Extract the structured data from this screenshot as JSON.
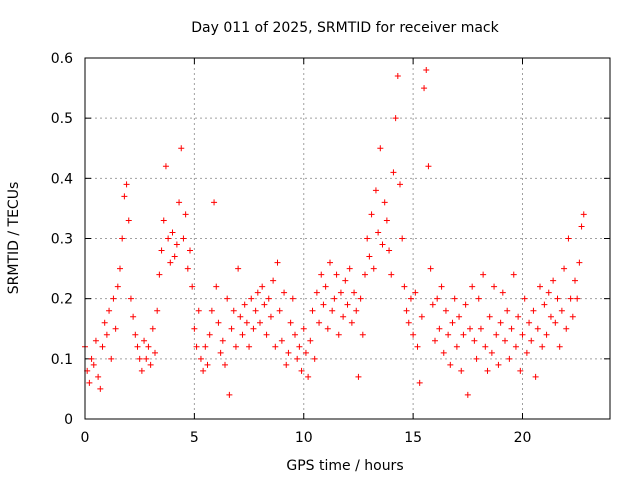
{
  "chart_data": {
    "type": "scatter",
    "title": "Day 011 of 2025, SRMTID for receiver mack",
    "xlabel": "GPS time / hours",
    "ylabel": "SRMTID / TECUs",
    "xlim": [
      0,
      24
    ],
    "ylim": [
      0,
      0.6
    ],
    "xticks": [
      0,
      5,
      10,
      15,
      20
    ],
    "xtick_labels": [
      "0",
      "5",
      "10",
      "15",
      "20"
    ],
    "yticks": [
      0,
      0.1,
      0.2,
      0.3,
      0.4,
      0.5,
      0.6
    ],
    "ytick_labels": [
      "0",
      "0.1",
      "0.2",
      "0.3",
      "0.4",
      "0.5",
      "0.6"
    ],
    "grid": true,
    "marker": "+",
    "series": [
      {
        "name": "SRMTID",
        "color": "#ff0000",
        "points": [
          [
            0.0,
            0.12
          ],
          [
            0.1,
            0.08
          ],
          [
            0.2,
            0.06
          ],
          [
            0.3,
            0.1
          ],
          [
            0.4,
            0.09
          ],
          [
            0.5,
            0.13
          ],
          [
            0.6,
            0.07
          ],
          [
            0.7,
            0.05
          ],
          [
            0.8,
            0.12
          ],
          [
            0.9,
            0.16
          ],
          [
            1.0,
            0.14
          ],
          [
            1.1,
            0.18
          ],
          [
            1.2,
            0.1
          ],
          [
            1.3,
            0.2
          ],
          [
            1.4,
            0.15
          ],
          [
            1.5,
            0.22
          ],
          [
            1.6,
            0.25
          ],
          [
            1.7,
            0.3
          ],
          [
            1.8,
            0.37
          ],
          [
            1.9,
            0.39
          ],
          [
            2.0,
            0.33
          ],
          [
            2.1,
            0.2
          ],
          [
            2.2,
            0.17
          ],
          [
            2.3,
            0.14
          ],
          [
            2.4,
            0.12
          ],
          [
            2.5,
            0.1
          ],
          [
            2.6,
            0.08
          ],
          [
            2.7,
            0.13
          ],
          [
            2.8,
            0.1
          ],
          [
            2.9,
            0.12
          ],
          [
            3.0,
            0.09
          ],
          [
            3.1,
            0.15
          ],
          [
            3.2,
            0.11
          ],
          [
            3.3,
            0.18
          ],
          [
            3.4,
            0.24
          ],
          [
            3.5,
            0.28
          ],
          [
            3.6,
            0.33
          ],
          [
            3.7,
            0.42
          ],
          [
            3.8,
            0.3
          ],
          [
            3.9,
            0.26
          ],
          [
            4.0,
            0.31
          ],
          [
            4.1,
            0.27
          ],
          [
            4.2,
            0.29
          ],
          [
            4.3,
            0.36
          ],
          [
            4.4,
            0.45
          ],
          [
            4.5,
            0.3
          ],
          [
            4.6,
            0.34
          ],
          [
            4.7,
            0.25
          ],
          [
            4.8,
            0.28
          ],
          [
            4.9,
            0.22
          ],
          [
            5.0,
            0.15
          ],
          [
            5.1,
            0.12
          ],
          [
            5.2,
            0.18
          ],
          [
            5.3,
            0.1
          ],
          [
            5.4,
            0.08
          ],
          [
            5.5,
            0.12
          ],
          [
            5.6,
            0.09
          ],
          [
            5.7,
            0.14
          ],
          [
            5.8,
            0.18
          ],
          [
            5.9,
            0.36
          ],
          [
            6.0,
            0.22
          ],
          [
            6.1,
            0.16
          ],
          [
            6.2,
            0.11
          ],
          [
            6.3,
            0.13
          ],
          [
            6.4,
            0.09
          ],
          [
            6.5,
            0.2
          ],
          [
            6.6,
            0.04
          ],
          [
            6.7,
            0.15
          ],
          [
            6.8,
            0.18
          ],
          [
            6.9,
            0.12
          ],
          [
            7.0,
            0.25
          ],
          [
            7.1,
            0.17
          ],
          [
            7.2,
            0.14
          ],
          [
            7.3,
            0.19
          ],
          [
            7.4,
            0.16
          ],
          [
            7.5,
            0.12
          ],
          [
            7.6,
            0.2
          ],
          [
            7.7,
            0.15
          ],
          [
            7.8,
            0.18
          ],
          [
            7.9,
            0.21
          ],
          [
            8.0,
            0.16
          ],
          [
            8.1,
            0.22
          ],
          [
            8.2,
            0.19
          ],
          [
            8.3,
            0.14
          ],
          [
            8.4,
            0.2
          ],
          [
            8.5,
            0.17
          ],
          [
            8.6,
            0.23
          ],
          [
            8.7,
            0.12
          ],
          [
            8.8,
            0.26
          ],
          [
            8.9,
            0.18
          ],
          [
            9.0,
            0.13
          ],
          [
            9.1,
            0.21
          ],
          [
            9.2,
            0.09
          ],
          [
            9.3,
            0.11
          ],
          [
            9.4,
            0.16
          ],
          [
            9.5,
            0.2
          ],
          [
            9.6,
            0.14
          ],
          [
            9.7,
            0.1
          ],
          [
            9.8,
            0.12
          ],
          [
            9.9,
            0.08
          ],
          [
            10.0,
            0.15
          ],
          [
            10.1,
            0.11
          ],
          [
            10.2,
            0.07
          ],
          [
            10.3,
            0.13
          ],
          [
            10.4,
            0.18
          ],
          [
            10.5,
            0.1
          ],
          [
            10.6,
            0.21
          ],
          [
            10.7,
            0.16
          ],
          [
            10.8,
            0.24
          ],
          [
            10.9,
            0.19
          ],
          [
            11.0,
            0.22
          ],
          [
            11.1,
            0.15
          ],
          [
            11.2,
            0.26
          ],
          [
            11.3,
            0.18
          ],
          [
            11.4,
            0.2
          ],
          [
            11.5,
            0.24
          ],
          [
            11.6,
            0.14
          ],
          [
            11.7,
            0.21
          ],
          [
            11.8,
            0.17
          ],
          [
            11.9,
            0.23
          ],
          [
            12.0,
            0.19
          ],
          [
            12.1,
            0.25
          ],
          [
            12.2,
            0.16
          ],
          [
            12.3,
            0.21
          ],
          [
            12.4,
            0.18
          ],
          [
            12.5,
            0.07
          ],
          [
            12.6,
            0.2
          ],
          [
            12.7,
            0.14
          ],
          [
            12.8,
            0.24
          ],
          [
            12.9,
            0.3
          ],
          [
            13.0,
            0.27
          ],
          [
            13.1,
            0.34
          ],
          [
            13.2,
            0.25
          ],
          [
            13.3,
            0.38
          ],
          [
            13.4,
            0.31
          ],
          [
            13.5,
            0.45
          ],
          [
            13.6,
            0.29
          ],
          [
            13.7,
            0.36
          ],
          [
            13.8,
            0.33
          ],
          [
            13.9,
            0.28
          ],
          [
            14.0,
            0.24
          ],
          [
            14.1,
            0.41
          ],
          [
            14.2,
            0.5
          ],
          [
            14.3,
            0.57
          ],
          [
            14.4,
            0.39
          ],
          [
            14.5,
            0.3
          ],
          [
            14.6,
            0.22
          ],
          [
            14.7,
            0.18
          ],
          [
            14.8,
            0.16
          ],
          [
            14.9,
            0.2
          ],
          [
            15.0,
            0.14
          ],
          [
            15.1,
            0.21
          ],
          [
            15.2,
            0.12
          ],
          [
            15.3,
            0.06
          ],
          [
            15.4,
            0.17
          ],
          [
            15.5,
            0.55
          ],
          [
            15.6,
            0.58
          ],
          [
            15.7,
            0.42
          ],
          [
            15.8,
            0.25
          ],
          [
            15.9,
            0.19
          ],
          [
            16.0,
            0.13
          ],
          [
            16.1,
            0.2
          ],
          [
            16.2,
            0.15
          ],
          [
            16.3,
            0.22
          ],
          [
            16.4,
            0.11
          ],
          [
            16.5,
            0.18
          ],
          [
            16.6,
            0.14
          ],
          [
            16.7,
            0.09
          ],
          [
            16.8,
            0.16
          ],
          [
            16.9,
            0.2
          ],
          [
            17.0,
            0.12
          ],
          [
            17.1,
            0.17
          ],
          [
            17.2,
            0.08
          ],
          [
            17.3,
            0.14
          ],
          [
            17.4,
            0.19
          ],
          [
            17.5,
            0.04
          ],
          [
            17.6,
            0.15
          ],
          [
            17.7,
            0.22
          ],
          [
            17.8,
            0.13
          ],
          [
            17.9,
            0.1
          ],
          [
            18.0,
            0.2
          ],
          [
            18.1,
            0.15
          ],
          [
            18.2,
            0.24
          ],
          [
            18.3,
            0.12
          ],
          [
            18.4,
            0.08
          ],
          [
            18.5,
            0.17
          ],
          [
            18.6,
            0.11
          ],
          [
            18.7,
            0.22
          ],
          [
            18.8,
            0.14
          ],
          [
            18.9,
            0.09
          ],
          [
            19.0,
            0.16
          ],
          [
            19.1,
            0.21
          ],
          [
            19.2,
            0.13
          ],
          [
            19.3,
            0.18
          ],
          [
            19.4,
            0.1
          ],
          [
            19.5,
            0.15
          ],
          [
            19.6,
            0.24
          ],
          [
            19.7,
            0.12
          ],
          [
            19.8,
            0.17
          ],
          [
            19.9,
            0.08
          ],
          [
            20.0,
            0.14
          ],
          [
            20.1,
            0.2
          ],
          [
            20.2,
            0.11
          ],
          [
            20.3,
            0.16
          ],
          [
            20.4,
            0.13
          ],
          [
            20.5,
            0.18
          ],
          [
            20.6,
            0.07
          ],
          [
            20.7,
            0.15
          ],
          [
            20.8,
            0.22
          ],
          [
            20.9,
            0.12
          ],
          [
            21.0,
            0.19
          ],
          [
            21.1,
            0.14
          ],
          [
            21.2,
            0.21
          ],
          [
            21.3,
            0.17
          ],
          [
            21.4,
            0.23
          ],
          [
            21.5,
            0.16
          ],
          [
            21.6,
            0.2
          ],
          [
            21.7,
            0.12
          ],
          [
            21.8,
            0.18
          ],
          [
            21.9,
            0.25
          ],
          [
            22.0,
            0.15
          ],
          [
            22.1,
            0.3
          ],
          [
            22.2,
            0.2
          ],
          [
            22.3,
            0.17
          ],
          [
            22.4,
            0.23
          ],
          [
            22.5,
            0.2
          ],
          [
            22.6,
            0.26
          ],
          [
            22.7,
            0.32
          ],
          [
            22.8,
            0.34
          ]
        ]
      }
    ]
  }
}
